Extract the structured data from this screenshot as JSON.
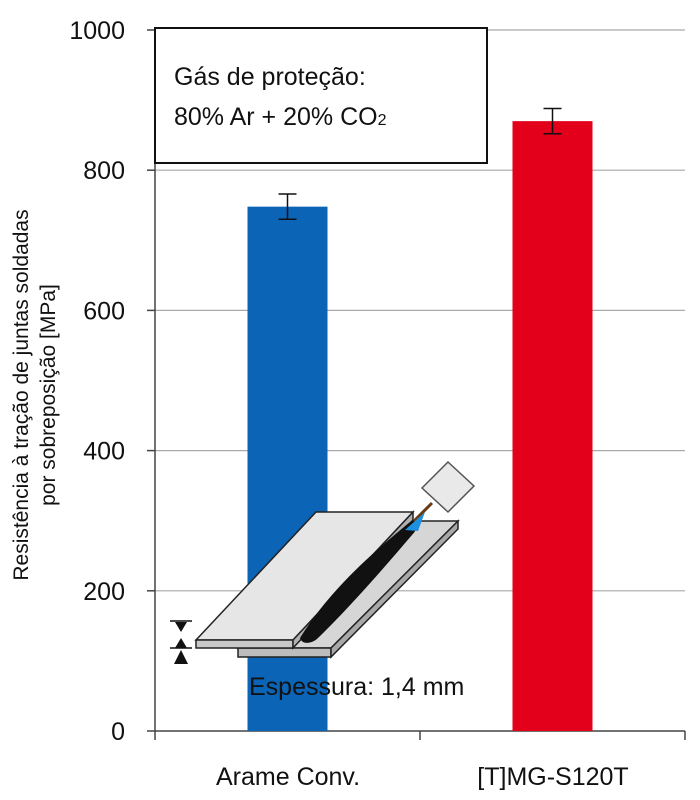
{
  "chart_data": {
    "type": "bar",
    "categories": [
      "Arame Conv.",
      "[T]MG-S120T"
    ],
    "values": [
      748,
      870
    ],
    "error_bars": [
      18,
      18
    ],
    "bar_colors": [
      "#0b64b5",
      "#e3001b"
    ],
    "ylabel_line1": "Resistência à tração de juntas soldadas",
    "ylabel_line2": "por sobreposição [MPa]",
    "ylim": [
      0,
      1000
    ],
    "yticks": [
      0,
      200,
      400,
      600,
      800,
      1000
    ],
    "ytick_labels": [
      "0",
      "200",
      "400",
      "600",
      "800",
      "1000"
    ],
    "grid": true,
    "annotation_box": {
      "line1": "Gás de proteção:",
      "line2_main": "80% Ar + 20% CO",
      "line2_sub": "2"
    },
    "thickness_label": "Espessura: 1,4 mm"
  }
}
